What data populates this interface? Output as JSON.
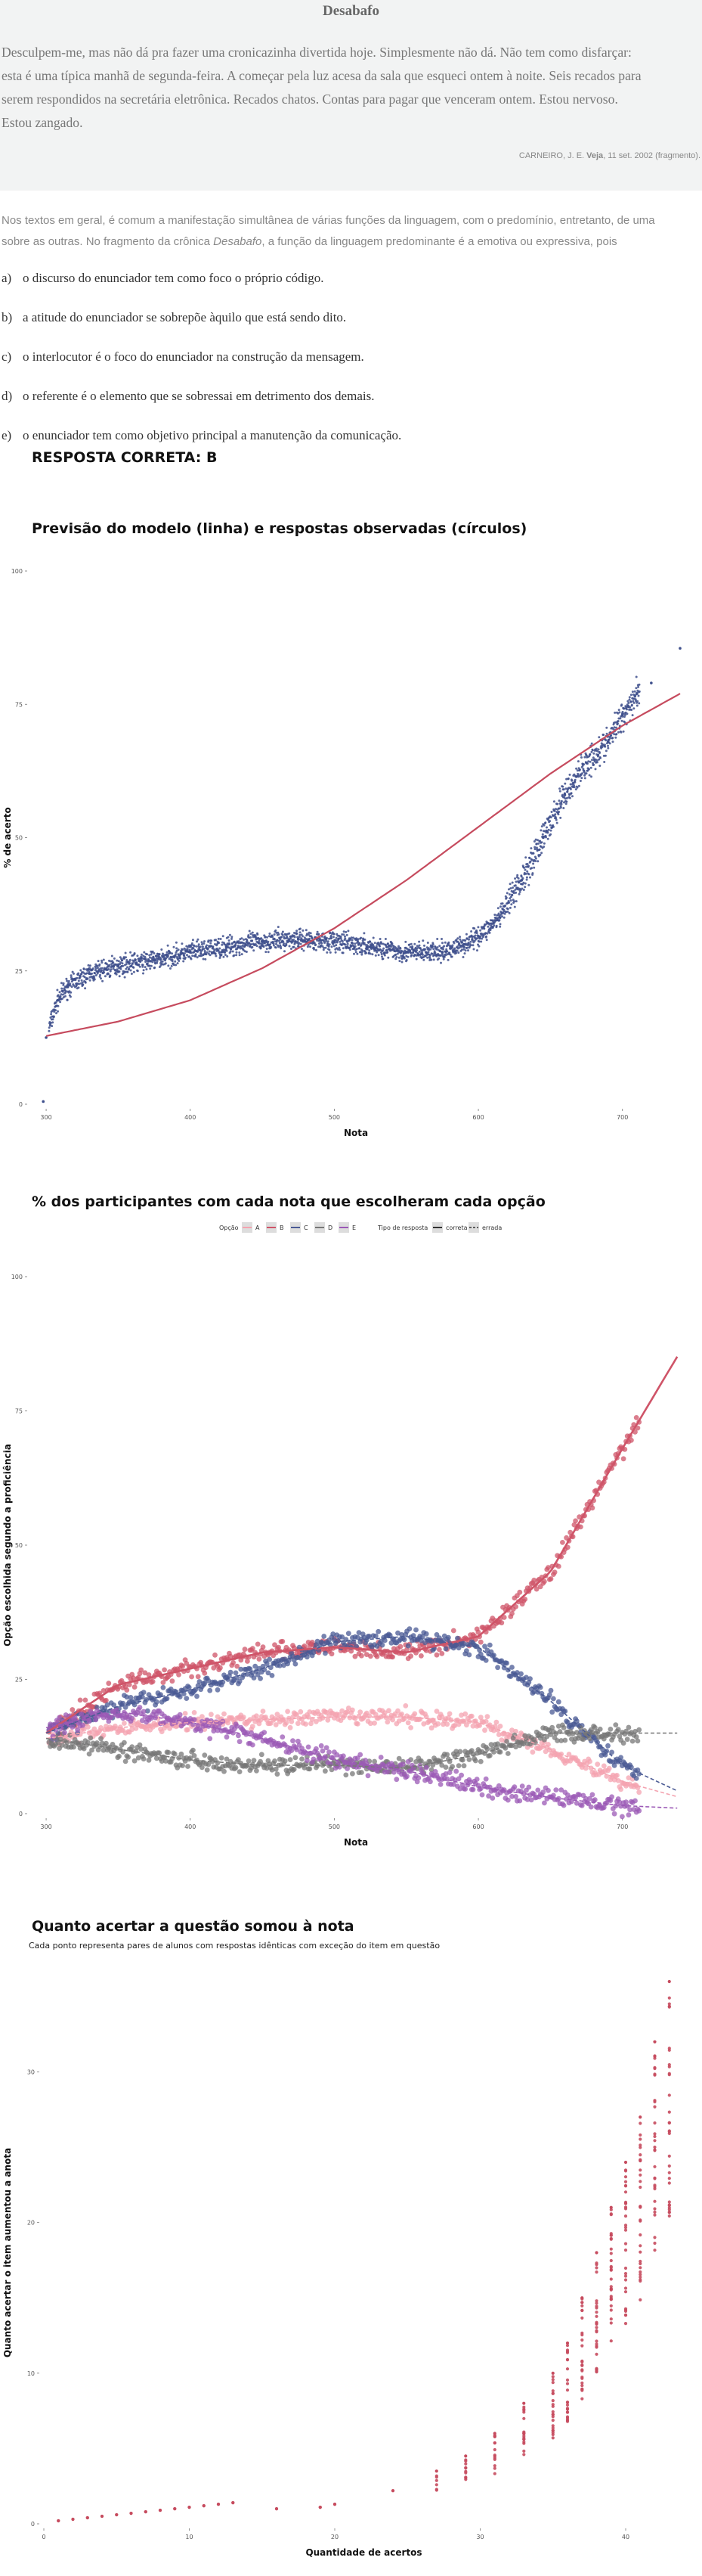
{
  "passage": {
    "title": "Desabafo",
    "lines": [
      "Desculpem-me, mas não dá pra fazer uma cronicazinha divertida hoje. Simplesmente não dá. Não tem como disfarçar:",
      "esta é uma típica manhã de segunda-feira. A começar pela luz acesa da sala que esqueci ontem à noite. Seis recados para",
      "serem respondidos na secretária eletrônica. Recados chatos. Contas para pagar que venceram ontem. Estou nervoso.",
      "Estou zangado."
    ],
    "source_author": "CARNEIRO, J. E.",
    "source_pub": "Veja",
    "source_rest": ", 11 set. 2002 (fragmento)."
  },
  "question": {
    "line1": "Nos textos em geral, é comum a manifestação simultânea de várias funções da linguagem, com o predomínio, entretanto, de uma",
    "line2_a": "sobre as outras. No fragmento da crônica ",
    "line2_italic": "Desabafo",
    "line2_b": ", a função da linguagem predominante é a emotiva ou expressiva, pois"
  },
  "options": [
    {
      "key": "a)",
      "text": "o discurso do enunciador tem como foco o próprio código."
    },
    {
      "key": "b)",
      "text": "a atitude do enunciador se sobrepõe àquilo que está sendo dito."
    },
    {
      "key": "c)",
      "text": "o interlocutor é o foco do enunciador na construção da mensagem."
    },
    {
      "key": "d)",
      "text": "o referente é o elemento que se sobressai em detrimento dos demais."
    },
    {
      "key": "e)",
      "text": "o enunciador tem como objetivo principal a manutenção da comunicação."
    }
  ],
  "answer": "RESPOSTA CORRETA: B",
  "colors": {
    "A": "#f4a3b0",
    "B": "#cf5468",
    "C": "#4a5a94",
    "D": "#777777",
    "E": "#9b59b6",
    "points": "#3e4f8c",
    "line": "#c64b5e"
  },
  "chart_data": [
    {
      "type": "scatter",
      "title": "Previsão do modelo (linha) e respostas observadas (círculos)",
      "xlabel": "Nota",
      "ylabel": "% de acerto",
      "xlim": [
        290,
        740
      ],
      "ylim": [
        0,
        100
      ],
      "xticks": [
        300,
        400,
        500,
        600,
        700
      ],
      "yticks": [
        0,
        25,
        50,
        75,
        100
      ],
      "grid": false,
      "model_line": {
        "x": [
          300,
          350,
          400,
          450,
          500,
          550,
          600,
          650,
          700,
          740
        ],
        "y": [
          12.8,
          15.5,
          19.5,
          25.5,
          33,
          42,
          52,
          62,
          71,
          77
        ]
      },
      "observed": [
        {
          "x": 298,
          "y": 0.5
        },
        {
          "x": 300,
          "y": 12.5
        },
        {
          "x": 308,
          "y": 19.5
        },
        {
          "x": 315,
          "y": 22
        },
        {
          "x": 330,
          "y": 24.5
        },
        {
          "x": 350,
          "y": 26
        },
        {
          "x": 375,
          "y": 27
        },
        {
          "x": 400,
          "y": 28.5
        },
        {
          "x": 425,
          "y": 29.5
        },
        {
          "x": 450,
          "y": 30.5
        },
        {
          "x": 475,
          "y": 31
        },
        {
          "x": 500,
          "y": 30.5
        },
        {
          "x": 525,
          "y": 29.5
        },
        {
          "x": 550,
          "y": 28.5
        },
        {
          "x": 575,
          "y": 28.5
        },
        {
          "x": 590,
          "y": 30
        },
        {
          "x": 600,
          "y": 31.5
        },
        {
          "x": 615,
          "y": 35
        },
        {
          "x": 630,
          "y": 42
        },
        {
          "x": 645,
          "y": 50
        },
        {
          "x": 660,
          "y": 58
        },
        {
          "x": 675,
          "y": 64
        },
        {
          "x": 690,
          "y": 68
        },
        {
          "x": 700,
          "y": 73
        },
        {
          "x": 710,
          "y": 77
        },
        {
          "x": 720,
          "y": 79
        },
        {
          "x": 740,
          "y": 85.5
        }
      ]
    },
    {
      "type": "line",
      "title": "% dos participantes com cada nota que escolheram cada opção",
      "xlabel": "Nota",
      "ylabel": "Opção escolhida segundo a proficiência",
      "xlim": [
        290,
        740
      ],
      "ylim": [
        0,
        100
      ],
      "xticks": [
        300,
        400,
        500,
        600,
        700
      ],
      "yticks": [
        0,
        25,
        50,
        75,
        100
      ],
      "grid": false,
      "legend_option_title": "Opção",
      "legend_type_title": "Tipo de resposta",
      "legend_correct": "correta",
      "legend_wrong": "errada",
      "legend_position": "top",
      "x": [
        300,
        350,
        400,
        450,
        500,
        550,
        600,
        650,
        700,
        740
      ],
      "series": [
        {
          "name": "A",
          "correct": false,
          "values": [
            14,
            16,
            17,
            17.5,
            18,
            18,
            17,
            12,
            6,
            3
          ]
        },
        {
          "name": "B",
          "correct": true,
          "values": [
            15,
            24,
            27,
            30,
            31,
            30,
            33,
            45,
            68,
            86
          ]
        },
        {
          "name": "C",
          "correct": false,
          "values": [
            15,
            20,
            23,
            27,
            32,
            33,
            31,
            21,
            9,
            4
          ]
        },
        {
          "name": "D",
          "correct": false,
          "values": [
            14,
            12,
            10,
            9,
            9,
            8.5,
            11,
            15,
            15,
            15
          ]
        },
        {
          "name": "E",
          "correct": false,
          "values": [
            16,
            19,
            17,
            14,
            10,
            8,
            5,
            3,
            1.5,
            1
          ]
        }
      ]
    },
    {
      "type": "scatter",
      "title": "Quanto acertar a questão somou à nota",
      "subtitle": "Cada ponto representa pares de alunos com respostas idênticas com exceção do item em questão",
      "xlabel": "Quantidade de acertos",
      "ylabel": "Quanto acertar o item aumentou a anota",
      "xlim": [
        0,
        44
      ],
      "ylim": [
        0,
        36
      ],
      "xticks": [
        0,
        10,
        20,
        30,
        40
      ],
      "yticks": [
        0,
        10,
        20,
        30
      ],
      "grid": false,
      "points": [
        {
          "x": 1,
          "y": 0.2
        },
        {
          "x": 2,
          "y": 0.3
        },
        {
          "x": 3,
          "y": 0.4
        },
        {
          "x": 4,
          "y": 0.5
        },
        {
          "x": 5,
          "y": 0.6
        },
        {
          "x": 6,
          "y": 0.7
        },
        {
          "x": 7,
          "y": 0.8
        },
        {
          "x": 8,
          "y": 0.9
        },
        {
          "x": 9,
          "y": 1.0
        },
        {
          "x": 10,
          "y": 1.1
        },
        {
          "x": 11,
          "y": 1.2
        },
        {
          "x": 12,
          "y": 1.3
        },
        {
          "x": 13,
          "y": 1.4
        },
        {
          "x": 16,
          "y": 1.0
        },
        {
          "x": 19,
          "y": 1.1
        },
        {
          "x": 20,
          "y": 1.3
        },
        {
          "x": 24,
          "y": 2.2
        },
        {
          "x": 27,
          "y": 3.5
        },
        {
          "x": 29,
          "y": 4.5
        },
        {
          "x": 31,
          "y": 6
        },
        {
          "x": 33,
          "y": 8
        },
        {
          "x": 35,
          "y": 10
        },
        {
          "x": 36,
          "y": 12
        },
        {
          "x": 37,
          "y": 15
        },
        {
          "x": 38,
          "y": 18
        },
        {
          "x": 39,
          "y": 21
        },
        {
          "x": 40,
          "y": 24
        },
        {
          "x": 41,
          "y": 27
        },
        {
          "x": 42,
          "y": 32
        },
        {
          "x": 43,
          "y": 36
        }
      ]
    }
  ]
}
